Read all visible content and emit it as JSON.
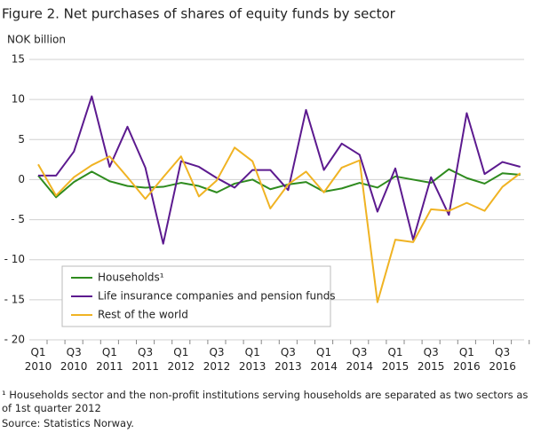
{
  "chart_data": {
    "type": "line",
    "title": "Figure 2. Net purchases of shares of equity funds by sector",
    "y_label": "NOK billion",
    "categories": [
      "Q1 2010",
      null,
      "Q3 2010",
      null,
      "Q1 2011",
      null,
      "Q3 2011",
      null,
      "Q1 2012",
      null,
      "Q3 2012",
      null,
      "Q1 2013",
      null,
      "Q3 2013",
      null,
      "Q1 2014",
      null,
      "Q3 2014",
      null,
      "Q1 2015",
      null,
      "Q3 2015",
      null,
      "Q1 2016",
      null,
      "Q3 2016",
      null
    ],
    "series": [
      {
        "name": "Households¹",
        "color": "#2e8b1e",
        "values": [
          0.5,
          -2.2,
          -0.3,
          1.0,
          -0.2,
          -0.8,
          -1.0,
          -0.9,
          -0.4,
          -0.8,
          -1.6,
          -0.5,
          0.0,
          -1.2,
          -0.6,
          -0.3,
          -1.5,
          -1.1,
          -0.4,
          -1.0,
          0.4,
          0.0,
          -0.4,
          1.3,
          0.2,
          -0.5,
          0.8,
          0.6
        ]
      },
      {
        "name": "Life insurance companies and pension funds",
        "color": "#5c1a8f",
        "values": [
          0.5,
          0.5,
          3.5,
          10.4,
          1.6,
          6.6,
          1.5,
          -8.0,
          2.3,
          1.6,
          0.2,
          -1.0,
          1.2,
          1.2,
          -1.3,
          8.7,
          1.2,
          4.5,
          3.1,
          -4.0,
          1.4,
          -7.5,
          0.3,
          -4.4,
          8.3,
          0.7,
          2.2,
          1.6
        ]
      },
      {
        "name": "Rest of the world",
        "color": "#f0b323",
        "values": [
          1.9,
          -2.0,
          0.3,
          1.8,
          2.9,
          0.3,
          -2.4,
          0.3,
          2.9,
          -2.1,
          -0.1,
          4.0,
          2.3,
          -3.6,
          -0.6,
          1.0,
          -1.6,
          1.5,
          2.4,
          -15.3,
          -7.5,
          -7.8,
          -3.7,
          -3.9,
          -2.9,
          -3.9,
          -0.9,
          0.8
        ]
      }
    ],
    "ylim": [
      -20,
      15
    ],
    "yticks": [
      {
        "value": -20,
        "label": "- 20"
      },
      {
        "value": -15,
        "label": "- 15"
      },
      {
        "value": -10,
        "label": "- 10"
      },
      {
        "value": -5,
        "label": "- 5"
      },
      0,
      5,
      10,
      15
    ],
    "grid": true,
    "legend": "lower left",
    "footnote": "¹ Households sector and the non-profit institutions serving households are separated as two sectors as of 1st quarter 2012",
    "source": "Source: Statistics Norway."
  }
}
